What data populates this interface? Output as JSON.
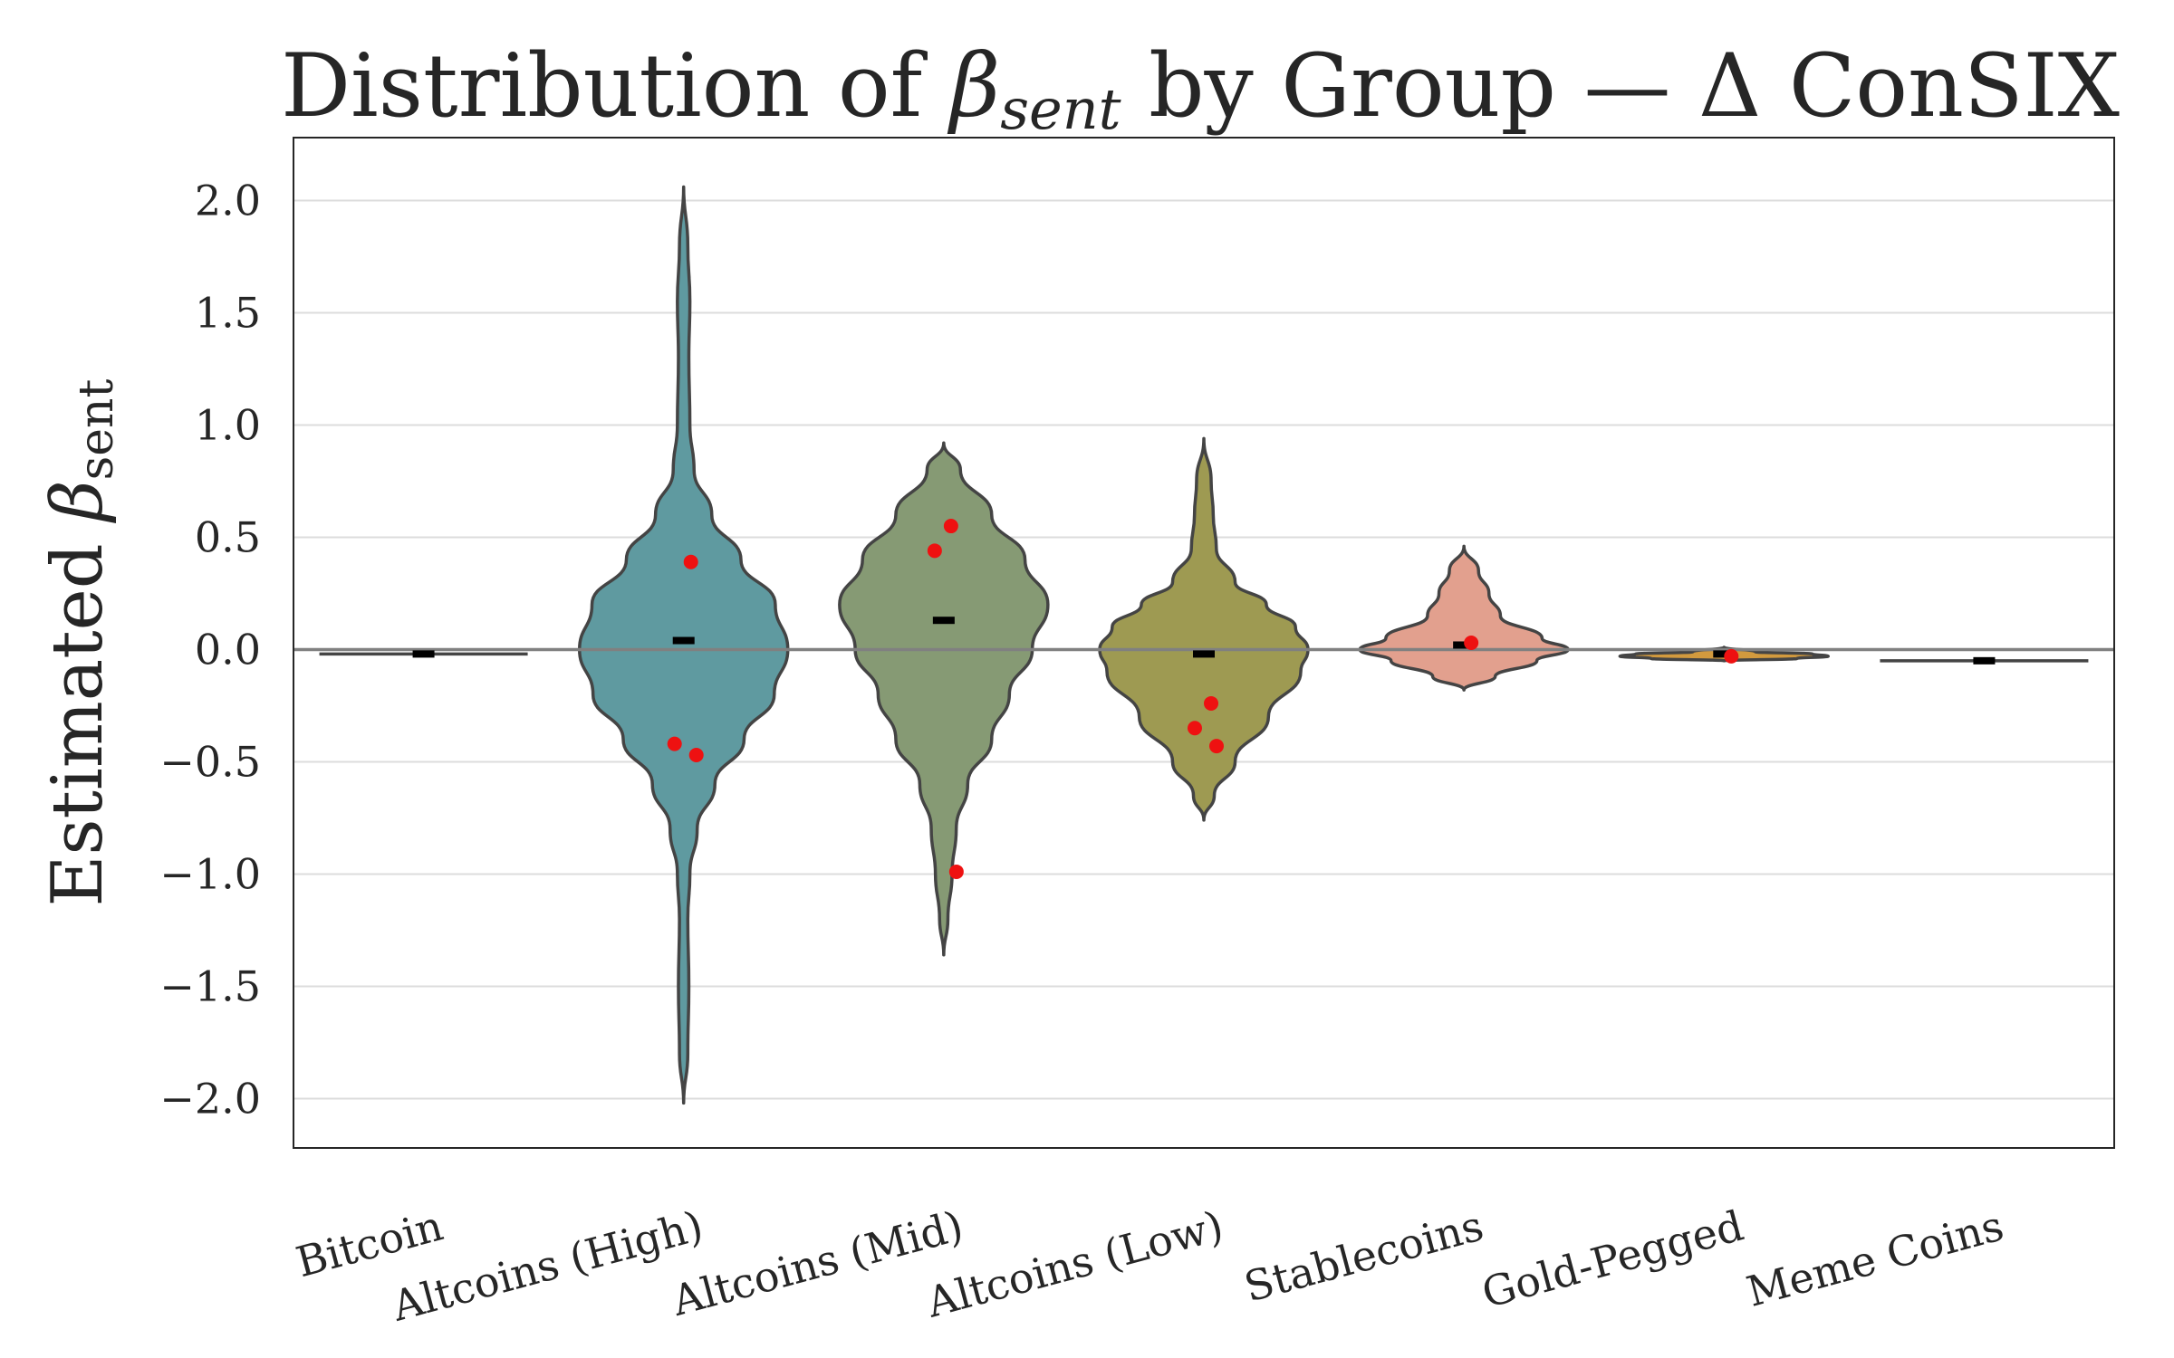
{
  "chart_data": {
    "type": "violin",
    "title_main": "Distribution of ",
    "title_symbol": "β",
    "title_sub": "sent",
    "title_rest": " by Group — Δ ConSIX",
    "ylabel_main": "Estimated ",
    "ylabel_symbol": "β",
    "ylabel_sub": "sent",
    "ylim": [
      -2.22,
      2.28
    ],
    "yticks": [
      2.0,
      1.5,
      1.0,
      0.5,
      0.0,
      -0.5,
      -1.0,
      -1.5,
      -2.0
    ],
    "ytick_labels": [
      "2.0",
      "1.5",
      "1.0",
      "0.5",
      "0.0",
      "−0.5",
      "−1.0",
      "−1.5",
      "−2.0"
    ],
    "grid": "horizontal",
    "reference_line": 0.0,
    "categories": [
      "Bitcoin",
      "Altcoins (High)",
      "Altcoins (Mid)",
      "Altcoins (Low)",
      "Stablecoins",
      "Gold-Pegged",
      "Meme Coins"
    ],
    "colors": [
      "#6f9fa8",
      "#5f9aa0",
      "#869a74",
      "#9e9a52",
      "#e2a08e",
      "#d29a3e",
      "#a0a0a0"
    ],
    "groups": [
      {
        "name": "Bitcoin",
        "median": -0.02,
        "points": [],
        "density": [
          [
            -0.03,
            1.0
          ],
          [
            -0.02,
            1.0
          ],
          [
            -0.01,
            1.0
          ]
        ]
      },
      {
        "name": "Altcoins (High)",
        "median": 0.04,
        "points": [
          0.39,
          -0.42,
          -0.47
        ],
        "density": [
          [
            -2.02,
            0.0
          ],
          [
            -1.8,
            0.04
          ],
          [
            -1.5,
            0.05
          ],
          [
            -1.2,
            0.04
          ],
          [
            -1.0,
            0.06
          ],
          [
            -0.8,
            0.13
          ],
          [
            -0.6,
            0.3
          ],
          [
            -0.4,
            0.58
          ],
          [
            -0.2,
            0.87
          ],
          [
            0.0,
            1.0
          ],
          [
            0.2,
            0.88
          ],
          [
            0.4,
            0.55
          ],
          [
            0.6,
            0.27
          ],
          [
            0.8,
            0.1
          ],
          [
            1.0,
            0.06
          ],
          [
            1.3,
            0.05
          ],
          [
            1.55,
            0.06
          ],
          [
            1.8,
            0.04
          ],
          [
            2.06,
            0.0
          ]
        ]
      },
      {
        "name": "Altcoins (Mid)",
        "median": 0.13,
        "points": [
          0.55,
          0.44,
          -0.99
        ],
        "density": [
          [
            -1.36,
            0.0
          ],
          [
            -1.2,
            0.04
          ],
          [
            -1.0,
            0.08
          ],
          [
            -0.8,
            0.12
          ],
          [
            -0.6,
            0.23
          ],
          [
            -0.4,
            0.46
          ],
          [
            -0.2,
            0.63
          ],
          [
            0.0,
            0.85
          ],
          [
            0.2,
            1.0
          ],
          [
            0.4,
            0.78
          ],
          [
            0.6,
            0.46
          ],
          [
            0.8,
            0.16
          ],
          [
            0.92,
            0.0
          ]
        ]
      },
      {
        "name": "Altcoins (Low)",
        "median": -0.02,
        "points": [
          -0.24,
          -0.35,
          -0.43
        ],
        "density": [
          [
            -0.76,
            0.0
          ],
          [
            -0.65,
            0.1
          ],
          [
            -0.5,
            0.3
          ],
          [
            -0.3,
            0.62
          ],
          [
            -0.1,
            0.93
          ],
          [
            0.0,
            1.0
          ],
          [
            0.1,
            0.88
          ],
          [
            0.2,
            0.6
          ],
          [
            0.3,
            0.3
          ],
          [
            0.45,
            0.12
          ],
          [
            0.6,
            0.09
          ],
          [
            0.75,
            0.07
          ],
          [
            0.94,
            0.0
          ]
        ]
      },
      {
        "name": "Stablecoins",
        "median": 0.02,
        "points": [
          0.03
        ],
        "density": [
          [
            -0.18,
            0.0
          ],
          [
            -0.12,
            0.3
          ],
          [
            -0.05,
            0.7
          ],
          [
            0.0,
            1.0
          ],
          [
            0.05,
            0.75
          ],
          [
            0.15,
            0.35
          ],
          [
            0.25,
            0.24
          ],
          [
            0.35,
            0.14
          ],
          [
            0.46,
            0.0
          ]
        ]
      },
      {
        "name": "Gold-Pegged",
        "median": -0.02,
        "points": [
          -0.03
        ],
        "density": [
          [
            -0.05,
            0.0
          ],
          [
            -0.04,
            0.7
          ],
          [
            -0.03,
            1.0
          ],
          [
            -0.02,
            0.85
          ],
          [
            -0.01,
            0.3
          ],
          [
            0.01,
            0.0
          ]
        ]
      },
      {
        "name": "Meme Coins",
        "median": -0.05,
        "points": [],
        "density": [
          [
            -0.06,
            1.0
          ],
          [
            -0.05,
            1.0
          ],
          [
            -0.04,
            1.0
          ]
        ]
      }
    ]
  }
}
